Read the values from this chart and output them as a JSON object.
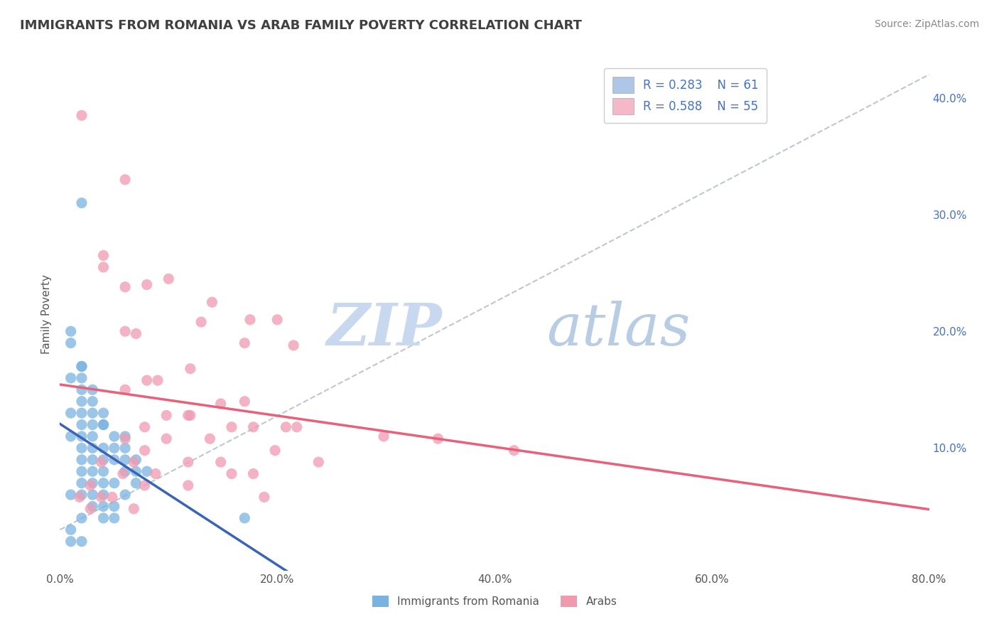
{
  "title": "IMMIGRANTS FROM ROMANIA VS ARAB FAMILY POVERTY CORRELATION CHART",
  "source": "Source: ZipAtlas.com",
  "ylabel": "Family Poverty",
  "xlim": [
    0.0,
    0.8
  ],
  "ylim": [
    -0.005,
    0.435
  ],
  "xticks": [
    0.0,
    0.2,
    0.4,
    0.6,
    0.8
  ],
  "xticklabels": [
    "0.0%",
    "20.0%",
    "40.0%",
    "60.0%",
    "80.0%"
  ],
  "yticks_right": [
    0.1,
    0.2,
    0.3,
    0.4
  ],
  "yticklabels_right": [
    "10.0%",
    "20.0%",
    "30.0%",
    "40.0%"
  ],
  "legend_entries": [
    {
      "label": "R = 0.283    N = 61",
      "color": "#aec6e8"
    },
    {
      "label": "R = 0.588    N = 55",
      "color": "#f4b8c8"
    }
  ],
  "legend_labels": [
    "Immigrants from Romania",
    "Arabs"
  ],
  "romania_color": "#7ab3e0",
  "arab_color": "#f09ab0",
  "romania_line_color": "#3a65b5",
  "arab_line_color": "#e8607a",
  "dashed_line_color": "#b0b8c8",
  "watermark_zip_color": "#c8d8ee",
  "watermark_atlas_color": "#b8cce4",
  "romania_scatter": [
    [
      0.02,
      0.31
    ],
    [
      0.01,
      0.2
    ],
    [
      0.01,
      0.19
    ],
    [
      0.02,
      0.17
    ],
    [
      0.02,
      0.17
    ],
    [
      0.01,
      0.16
    ],
    [
      0.02,
      0.16
    ],
    [
      0.02,
      0.15
    ],
    [
      0.03,
      0.15
    ],
    [
      0.02,
      0.14
    ],
    [
      0.03,
      0.14
    ],
    [
      0.01,
      0.13
    ],
    [
      0.03,
      0.13
    ],
    [
      0.02,
      0.13
    ],
    [
      0.04,
      0.13
    ],
    [
      0.03,
      0.12
    ],
    [
      0.04,
      0.12
    ],
    [
      0.04,
      0.12
    ],
    [
      0.02,
      0.12
    ],
    [
      0.05,
      0.11
    ],
    [
      0.03,
      0.11
    ],
    [
      0.01,
      0.11
    ],
    [
      0.02,
      0.11
    ],
    [
      0.06,
      0.11
    ],
    [
      0.04,
      0.1
    ],
    [
      0.03,
      0.1
    ],
    [
      0.06,
      0.1
    ],
    [
      0.02,
      0.1
    ],
    [
      0.05,
      0.1
    ],
    [
      0.07,
      0.09
    ],
    [
      0.04,
      0.09
    ],
    [
      0.03,
      0.09
    ],
    [
      0.02,
      0.09
    ],
    [
      0.06,
      0.09
    ],
    [
      0.05,
      0.09
    ],
    [
      0.04,
      0.08
    ],
    [
      0.06,
      0.08
    ],
    [
      0.07,
      0.08
    ],
    [
      0.03,
      0.08
    ],
    [
      0.02,
      0.08
    ],
    [
      0.08,
      0.08
    ],
    [
      0.04,
      0.07
    ],
    [
      0.05,
      0.07
    ],
    [
      0.07,
      0.07
    ],
    [
      0.03,
      0.07
    ],
    [
      0.02,
      0.07
    ],
    [
      0.01,
      0.06
    ],
    [
      0.02,
      0.06
    ],
    [
      0.04,
      0.06
    ],
    [
      0.03,
      0.06
    ],
    [
      0.06,
      0.06
    ],
    [
      0.05,
      0.05
    ],
    [
      0.04,
      0.05
    ],
    [
      0.03,
      0.05
    ],
    [
      0.02,
      0.04
    ],
    [
      0.04,
      0.04
    ],
    [
      0.05,
      0.04
    ],
    [
      0.17,
      0.04
    ],
    [
      0.01,
      0.03
    ],
    [
      0.02,
      0.02
    ],
    [
      0.01,
      0.02
    ]
  ],
  "arab_scatter": [
    [
      0.02,
      0.385
    ],
    [
      0.06,
      0.33
    ],
    [
      0.04,
      0.265
    ],
    [
      0.1,
      0.245
    ],
    [
      0.04,
      0.255
    ],
    [
      0.08,
      0.24
    ],
    [
      0.06,
      0.238
    ],
    [
      0.14,
      0.225
    ],
    [
      0.2,
      0.21
    ],
    [
      0.175,
      0.21
    ],
    [
      0.13,
      0.208
    ],
    [
      0.06,
      0.2
    ],
    [
      0.07,
      0.198
    ],
    [
      0.17,
      0.19
    ],
    [
      0.215,
      0.188
    ],
    [
      0.12,
      0.168
    ],
    [
      0.08,
      0.158
    ],
    [
      0.09,
      0.158
    ],
    [
      0.06,
      0.15
    ],
    [
      0.17,
      0.14
    ],
    [
      0.148,
      0.138
    ],
    [
      0.118,
      0.128
    ],
    [
      0.098,
      0.128
    ],
    [
      0.12,
      0.128
    ],
    [
      0.158,
      0.118
    ],
    [
      0.218,
      0.118
    ],
    [
      0.078,
      0.118
    ],
    [
      0.208,
      0.118
    ],
    [
      0.178,
      0.118
    ],
    [
      0.298,
      0.11
    ],
    [
      0.06,
      0.108
    ],
    [
      0.098,
      0.108
    ],
    [
      0.138,
      0.108
    ],
    [
      0.348,
      0.108
    ],
    [
      0.418,
      0.098
    ],
    [
      0.198,
      0.098
    ],
    [
      0.078,
      0.098
    ],
    [
      0.118,
      0.088
    ],
    [
      0.148,
      0.088
    ],
    [
      0.238,
      0.088
    ],
    [
      0.038,
      0.088
    ],
    [
      0.068,
      0.088
    ],
    [
      0.088,
      0.078
    ],
    [
      0.058,
      0.078
    ],
    [
      0.158,
      0.078
    ],
    [
      0.178,
      0.078
    ],
    [
      0.118,
      0.068
    ],
    [
      0.028,
      0.068
    ],
    [
      0.078,
      0.068
    ],
    [
      0.038,
      0.058
    ],
    [
      0.188,
      0.058
    ],
    [
      0.018,
      0.058
    ],
    [
      0.048,
      0.058
    ],
    [
      0.068,
      0.048
    ],
    [
      0.028,
      0.048
    ]
  ],
  "title_fontsize": 13,
  "source_fontsize": 10,
  "axis_label_fontsize": 11,
  "tick_fontsize": 11,
  "legend_fontsize": 12,
  "watermark_fontsize": 60,
  "scatter_size": 120,
  "background_color": "#ffffff",
  "grid_color": "#cccccc"
}
